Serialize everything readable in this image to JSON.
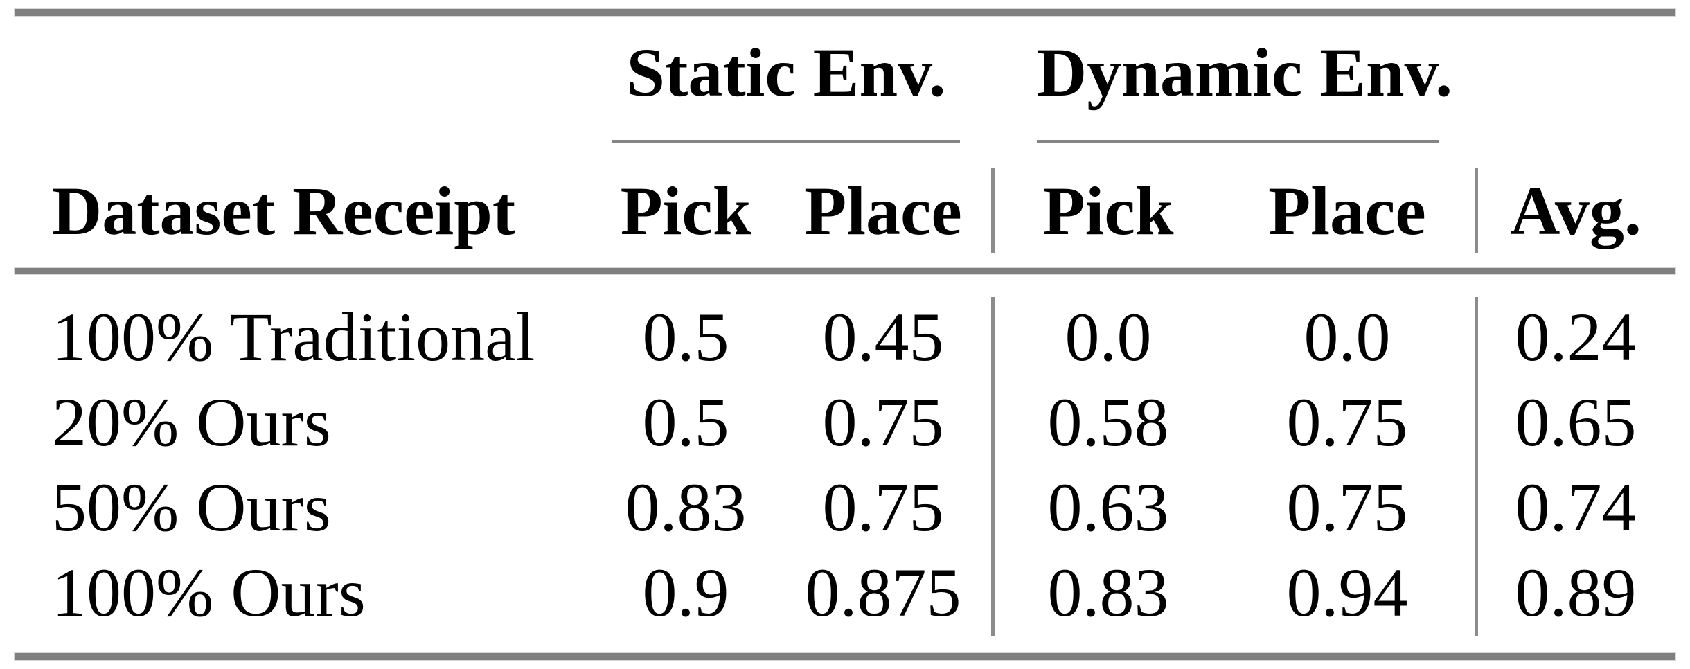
{
  "figure": {
    "background_color": "#ffffff",
    "rule_color": "#7f7f7f",
    "text_color": "#000000"
  },
  "table": {
    "groups": [
      {
        "label": "Static Env."
      },
      {
        "label": "Dynamic Env."
      }
    ],
    "headers": {
      "dataset": "Dataset Receipt",
      "static_pick": "Pick",
      "static_place": "Place",
      "dynamic_pick": "Pick",
      "dynamic_place": "Place",
      "avg": "Avg."
    },
    "rows": [
      {
        "label": "100% Traditional",
        "static_pick": "0.5",
        "static_place": "0.45",
        "dynamic_pick": "0.0",
        "dynamic_place": "0.0",
        "avg": "0.24"
      },
      {
        "label": "20% Ours",
        "static_pick": "0.5",
        "static_place": "0.75",
        "dynamic_pick": "0.58",
        "dynamic_place": "0.75",
        "avg": "0.65"
      },
      {
        "label": "50% Ours",
        "static_pick": "0.83",
        "static_place": "0.75",
        "dynamic_pick": "0.63",
        "dynamic_place": "0.75",
        "avg": "0.74"
      },
      {
        "label": "100% Ours",
        "static_pick": "0.9",
        "static_place": "0.875",
        "dynamic_pick": "0.83",
        "dynamic_place": "0.94",
        "avg": "0.89"
      }
    ]
  },
  "chart_data": {
    "type": "table",
    "columns": [
      "Dataset Receipt",
      "Static Env. Pick",
      "Static Env. Place",
      "Dynamic Env. Pick",
      "Dynamic Env. Place",
      "Avg."
    ],
    "rows": [
      [
        "100% Traditional",
        0.5,
        0.45,
        0.0,
        0.0,
        0.24
      ],
      [
        "20% Ours",
        0.5,
        0.75,
        0.58,
        0.75,
        0.65
      ],
      [
        "50% Ours",
        0.83,
        0.75,
        0.63,
        0.75,
        0.74
      ],
      [
        "100% Ours",
        0.9,
        0.875,
        0.83,
        0.94,
        0.89
      ]
    ]
  }
}
